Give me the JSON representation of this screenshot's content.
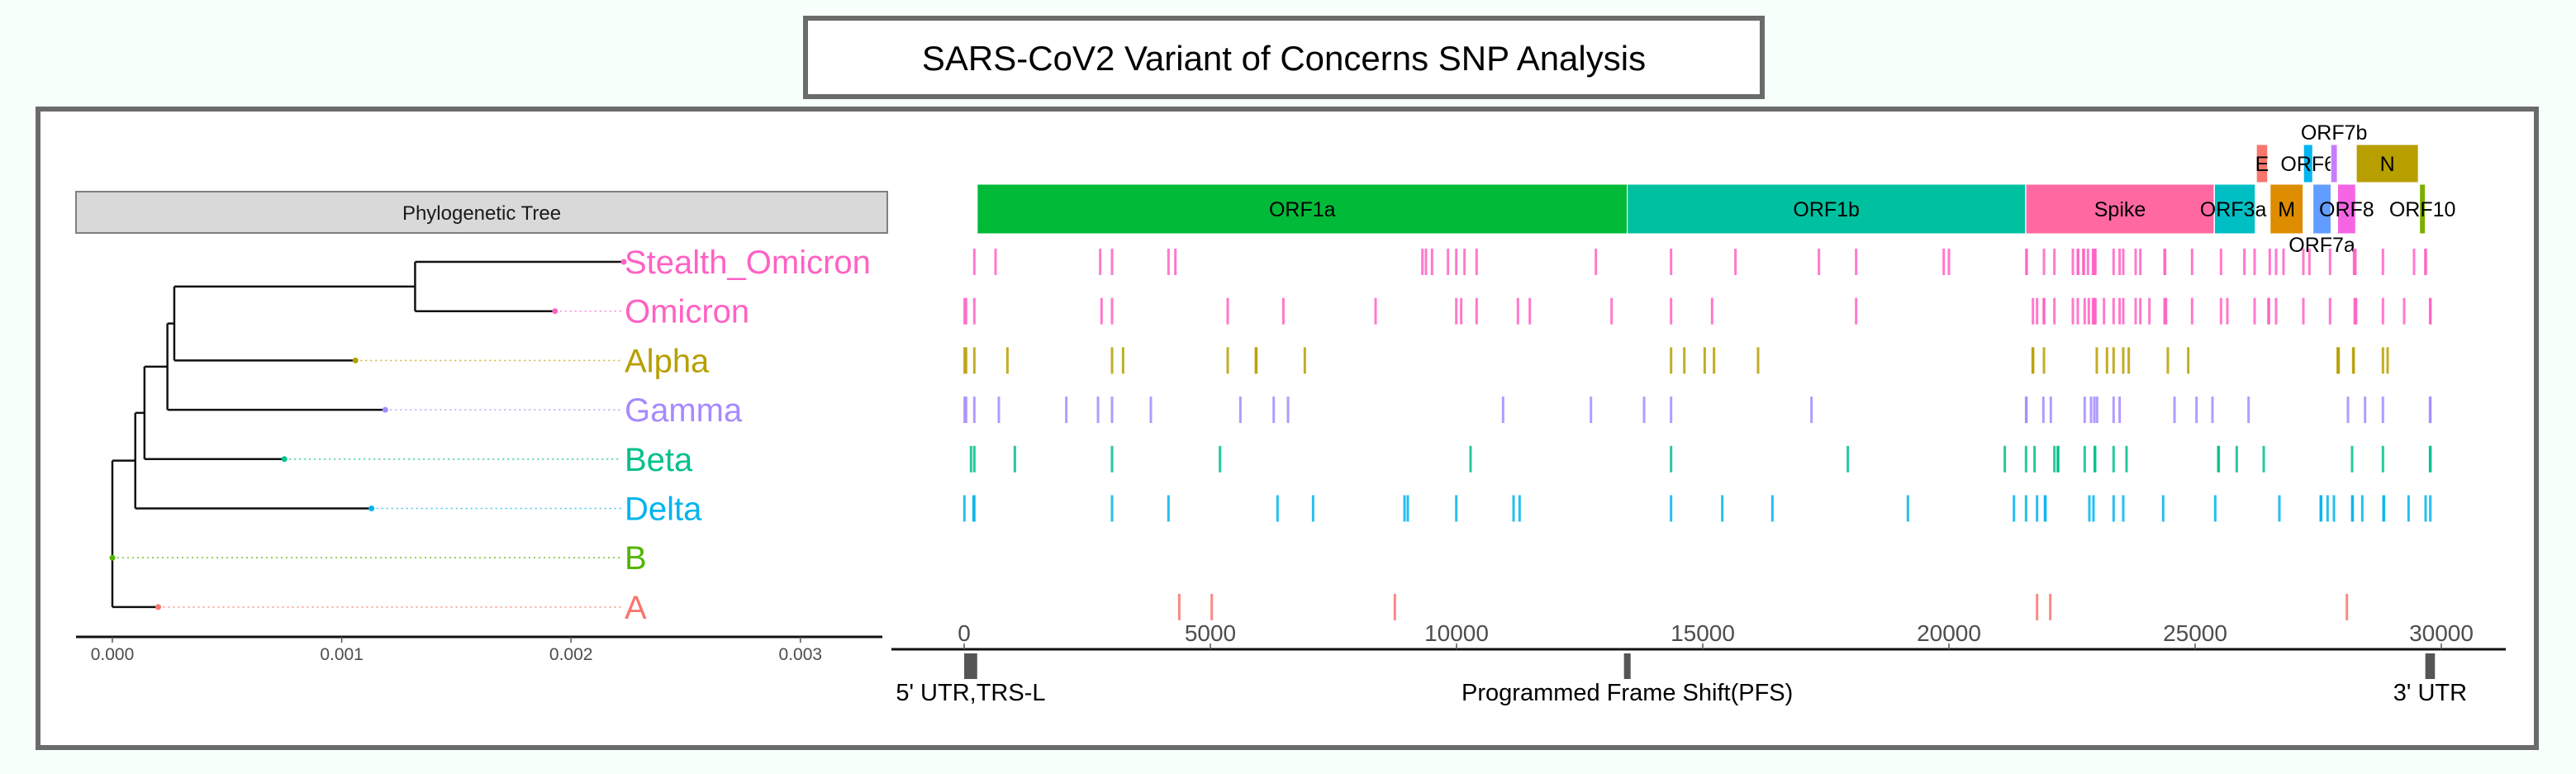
{
  "title": "SARS-CoV2 Variant of Concerns SNP Analysis",
  "tree_panel": {
    "header": "Phylogenetic Tree",
    "axis_ticks": [
      {
        "value": 0.0,
        "label": "0.000"
      },
      {
        "value": 0.001,
        "label": "0.001"
      },
      {
        "value": 0.002,
        "label": "0.002"
      },
      {
        "value": 0.003,
        "label": "0.003"
      }
    ],
    "tips": [
      {
        "name": "Stealth_Omicron",
        "depth": 0.00223,
        "color": "#ff61c3"
      },
      {
        "name": "Omicron",
        "depth": 0.00193,
        "color": "#ff61c3"
      },
      {
        "name": "Alpha",
        "depth": 0.00106,
        "color": "#b79f00"
      },
      {
        "name": "Gamma",
        "depth": 0.00119,
        "color": "#a58aff"
      },
      {
        "name": "Beta",
        "depth": 0.00075,
        "color": "#00c08b"
      },
      {
        "name": "Delta",
        "depth": 0.00113,
        "color": "#00b4ef"
      },
      {
        "name": "B",
        "depth": 0.0,
        "color": "#53b400"
      },
      {
        "name": "A",
        "depth": 0.0002,
        "color": "#f8766d"
      }
    ],
    "nodes": [
      {
        "id": "n_omicron",
        "depth": 0.00132,
        "children": [
          "Stealth_Omicron",
          "Omicron"
        ]
      },
      {
        "id": "n_alpha",
        "depth": 0.00027,
        "children": [
          "n_omicron",
          "Alpha"
        ]
      },
      {
        "id": "n_gamma",
        "depth": 0.00024,
        "children": [
          "n_alpha",
          "Gamma"
        ]
      },
      {
        "id": "n_beta",
        "depth": 0.00014,
        "children": [
          "n_gamma",
          "Beta"
        ]
      },
      {
        "id": "n_delta",
        "depth": 0.0001,
        "children": [
          "n_beta",
          "Delta"
        ]
      },
      {
        "id": "root",
        "depth": 0.0,
        "children": [
          "n_delta",
          "B",
          "A"
        ]
      }
    ]
  },
  "genome_panel": {
    "axis_ticks": [
      {
        "value": 0,
        "label": "0"
      },
      {
        "value": 5000,
        "label": "5000"
      },
      {
        "value": 10000,
        "label": "10000"
      },
      {
        "value": 15000,
        "label": "15000"
      },
      {
        "value": 20000,
        "label": "20000"
      },
      {
        "value": 25000,
        "label": "25000"
      },
      {
        "value": 30000,
        "label": "30000"
      }
    ],
    "genes": [
      {
        "name": "ORF1a",
        "start": 266,
        "end": 13468,
        "color": "#00ba38"
      },
      {
        "name": "ORF1b",
        "start": 13468,
        "end": 21555,
        "color": "#00c19f"
      },
      {
        "name": "Spike",
        "start": 21563,
        "end": 25384,
        "color": "#ff68a1"
      },
      {
        "name": "ORF3a",
        "start": 25393,
        "end": 26220,
        "color": "#00bfc4"
      },
      {
        "name": "E",
        "start": 26245,
        "end": 26472,
        "color": "#f8766d"
      },
      {
        "name": "M",
        "start": 26523,
        "end": 27191,
        "color": "#de8c00"
      },
      {
        "name": "ORF6",
        "start": 27202,
        "end": 27387,
        "color": "#00b4f0"
      },
      {
        "name": "ORF7a",
        "start": 27394,
        "end": 27759,
        "color": "#619cff"
      },
      {
        "name": "ORF7b",
        "start": 27756,
        "end": 27887,
        "color": "#c77cff"
      },
      {
        "name": "ORF8",
        "start": 27894,
        "end": 28259,
        "color": "#f564e3"
      },
      {
        "name": "N",
        "start": 28274,
        "end": 29533,
        "color": "#b79f00"
      },
      {
        "name": "ORF10",
        "start": 29558,
        "end": 29674,
        "color": "#7cae00"
      }
    ],
    "regions": [
      {
        "label": "5' UTR,TRS-L",
        "start": 1,
        "end": 265
      },
      {
        "label": "Programmed Frame Shift(PFS)",
        "start": 13468,
        "end": 13468
      },
      {
        "label": "3' UTR",
        "start": 29675,
        "end": 29870
      }
    ]
  },
  "chart_data": {
    "type": "scatter",
    "title": "SARS-CoV2 Variant of Concerns SNP Analysis",
    "xlabel": "",
    "ylabel": "",
    "xlim": [
      0,
      30000
    ],
    "series": [
      {
        "name": "Stealth_Omicron",
        "positions": [
          207,
          638,
          2763,
          3004,
          4150,
          4290,
          9307,
          9379,
          9502,
          9827,
          9995,
          10162,
          10408,
          12830,
          14357,
          15665,
          17360,
          18115,
          19894,
          20000,
          21572,
          21580,
          21930,
          22142,
          22517,
          22617,
          22625,
          22729,
          22740,
          22824,
          22925,
          22940,
          22960,
          22975,
          23344,
          23467,
          23540,
          23792,
          23887,
          24379,
          24390,
          24938,
          25526,
          26001,
          26208,
          26516,
          26644,
          26795,
          27198,
          27321,
          27740,
          28227,
          28240,
          28255,
          28814,
          29446,
          29675,
          29685
        ]
      },
      {
        "name": "Omicron",
        "positions": [
          10,
          40,
          207,
          2791,
          3004,
          5353,
          6483,
          8356,
          9995,
          10095,
          10408,
          11247,
          11488,
          13149,
          14357,
          15190,
          18115,
          21706,
          21790,
          21925,
          21935,
          22142,
          22517,
          22617,
          22757,
          22841,
          22925,
          22940,
          22960,
          22975,
          23149,
          23344,
          23467,
          23540,
          23792,
          23887,
          24072,
          24379,
          24395,
          24410,
          24938,
          25526,
          25654,
          26208,
          26488,
          26500,
          26644,
          27198,
          27740,
          28240,
          28255,
          28270,
          28814,
          29245,
          29772,
          29780
        ]
      },
      {
        "name": "Alpha",
        "positions": [
          10,
          40,
          207,
          879,
          3004,
          3228,
          5353,
          5924,
          5935,
          6919,
          14357,
          14626,
          15040,
          15229,
          16124,
          21700,
          21710,
          21930,
          23003,
          23210,
          23344,
          23540,
          23652,
          24446,
          24860,
          27895,
          27905,
          27915,
          28210,
          28220,
          28814,
          28909
        ]
      },
      {
        "name": "Gamma",
        "positions": [
          10,
          40,
          207,
          705,
          2075,
          2719,
          3004,
          3792,
          5610,
          6287,
          6578,
          10945,
          12730,
          13809,
          14357,
          17209,
          21567,
          21575,
          21918,
          22069,
          22757,
          22886,
          22953,
          23009,
          23344,
          23467,
          24581,
          25028,
          25352,
          26085,
          28104,
          28451,
          28814,
          29770,
          29778
        ]
      },
      {
        "name": "Beta",
        "positions": [
          140,
          207,
          1030,
          3004,
          5196,
          10285,
          14357,
          17947,
          21135,
          21566,
          21739,
          22142,
          22210,
          22220,
          22757,
          22960,
          22970,
          23344,
          23607,
          25470,
          25480,
          25845,
          26393,
          28188,
          28814,
          29770,
          29780
        ]
      },
      {
        "name": "Delta",
        "positions": [
          5,
          190,
          207,
          3004,
          4150,
          6365,
          7087,
          8943,
          9010,
          9995,
          11158,
          11281,
          14357,
          15397,
          16415,
          19167,
          21320,
          21566,
          21790,
          21950,
          21960,
          22852,
          22936,
          23344,
          23540,
          24351,
          25408,
          26711,
          27550,
          27560,
          27690,
          27819,
          28190,
          28200,
          28395,
          28825,
          28835,
          29335,
          29681,
          29776
        ]
      },
      {
        "name": "B",
        "positions": []
      },
      {
        "name": "A",
        "positions": [
          4369,
          5029,
          8747,
          21790,
          22058,
          28082
        ]
      }
    ]
  }
}
